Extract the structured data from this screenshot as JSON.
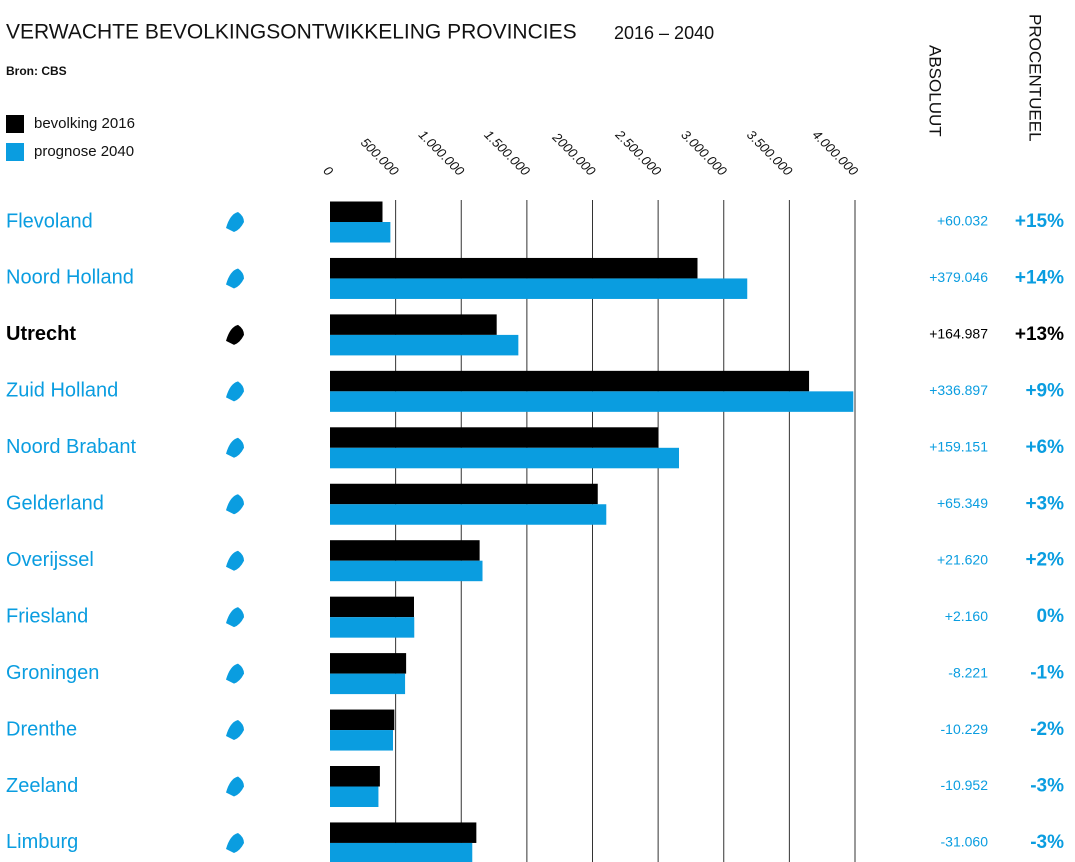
{
  "chart_data": {
    "type": "bar",
    "orientation": "horizontal",
    "title": "VERWACHTE BEVOLKINGSONTWIKKELING PROVINCIES",
    "subtitle": "2016 – 2040",
    "source": "Bron: CBS",
    "categories": [
      "Flevoland",
      "Noord Holland",
      "Utrecht",
      "Zuid Holland",
      "Noord Brabant",
      "Gelderland",
      "Overijssel",
      "Friesland",
      "Groningen",
      "Drenthe",
      "Zeeland",
      "Limburg"
    ],
    "highlight": 2,
    "series": [
      {
        "name": "bevolking 2016",
        "color": "#000000",
        "values": [
          400000,
          2800000,
          1270000,
          3650000,
          2500000,
          2040000,
          1140000,
          640000,
          580000,
          490000,
          380000,
          1115000
        ]
      },
      {
        "name": "prognose 2040",
        "color": "#0a9de0",
        "values": [
          460000,
          3179000,
          1435000,
          3987000,
          2659000,
          2105000,
          1162000,
          642000,
          572000,
          480000,
          369000,
          1084000
        ]
      }
    ],
    "changes": [
      {
        "name": "ABSOLUUT",
        "values": [
          60032,
          379046,
          164987,
          336897,
          159151,
          65349,
          21620,
          2160,
          -8221,
          -10229,
          -10952,
          -31060
        ],
        "value_labels": [
          "+60.032",
          "+379.046",
          "+164.987",
          "+336.897",
          "+159.151",
          "+65.349",
          "+21.620",
          "+2.160",
          "-8.221",
          "-10.229",
          "-10.952",
          "-31.060"
        ]
      },
      {
        "name": "PROCENTUEEL",
        "values": [
          15,
          14,
          13,
          9,
          6,
          3,
          2,
          0,
          -1,
          -2,
          -3,
          -3
        ],
        "value_labels": [
          "+15%",
          "+14%",
          "+13%",
          "+9%",
          "+6%",
          "+3%",
          "+2%",
          "0%",
          "-1%",
          "-2%",
          "-3%",
          "-3%"
        ]
      }
    ],
    "xlim": [
      0,
      4000000
    ],
    "xticks": [
      0,
      {
        "value": 500000,
        "label": "500.000"
      },
      {
        "value": 1000000,
        "label": "1.000.000"
      },
      {
        "value": 1500000,
        "label": "1.500.000"
      },
      {
        "value": 2000000,
        "label": "2000.000"
      },
      {
        "value": 2500000,
        "label": "2.500.000"
      },
      {
        "value": 3000000,
        "label": "3.000.000"
      },
      {
        "value": 3500000,
        "label": "3.500.000"
      },
      {
        "value": 4000000,
        "label": "4.000.000"
      }
    ],
    "grid": true
  }
}
